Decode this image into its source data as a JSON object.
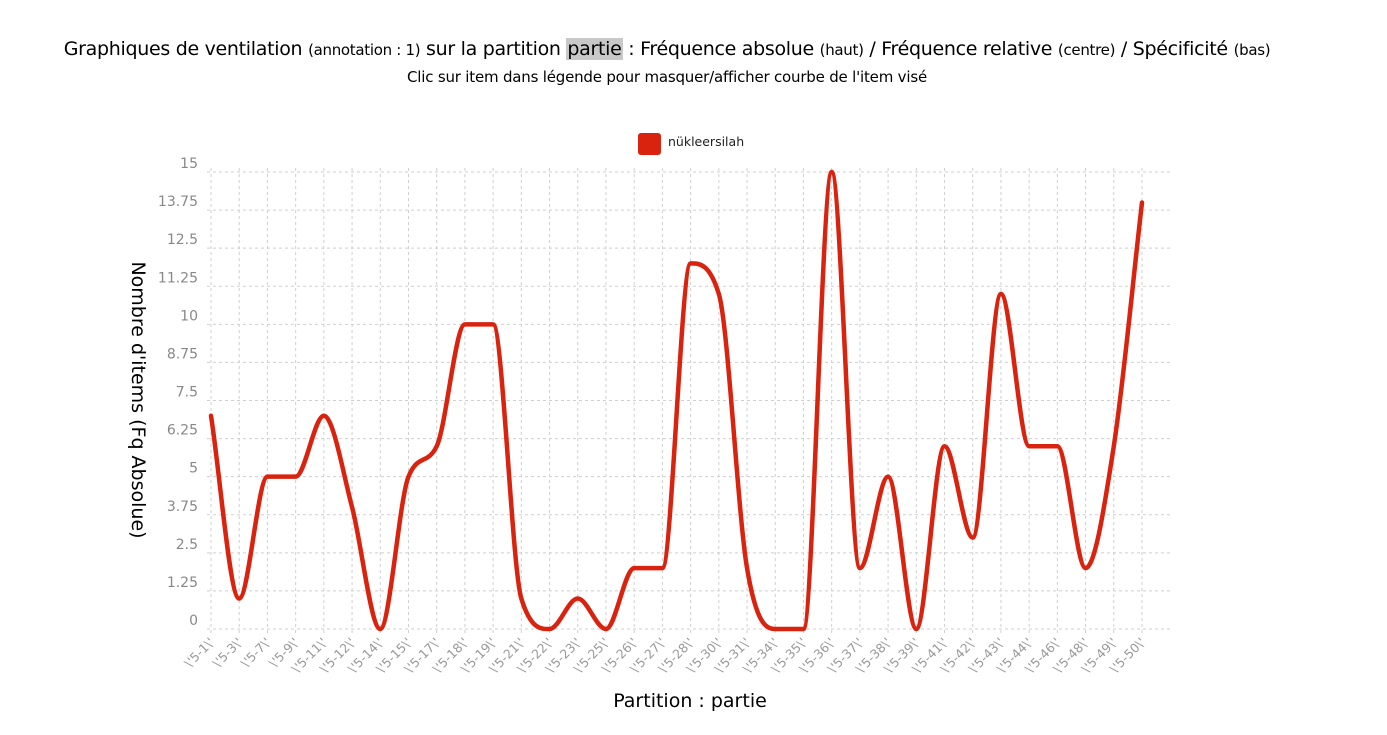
{
  "title": {
    "part1": "Graphiques de ventilation",
    "part2": "(annotation : 1)",
    "part3": "sur la partition",
    "part4": "partie",
    "part5": ": Fréquence absolue",
    "part6": "(haut)",
    "part7": "/ Fréquence relative",
    "part8": "(centre)",
    "part9": "/ Spécificité",
    "part10": "(bas)"
  },
  "subtitle": "Clic sur item dans légende pour masquer/afficher courbe de l'item visé",
  "chart_data": {
    "type": "line",
    "smooth": true,
    "grid": true,
    "legend_position": "top-center",
    "xlabel": "Partition : partie",
    "ylabel": "Nombre d'items (Fq Absolue)",
    "ylim": [
      0,
      15
    ],
    "yticks": [
      "0",
      "1.25",
      "2.5",
      "3.75",
      "5",
      "6.25",
      "7.5",
      "8.75",
      "10",
      "11.25",
      "12.5",
      "13.75",
      "15"
    ],
    "categories": [
      "\\'5-1\\'",
      "\\'5-3\\'",
      "\\'5-7\\'",
      "\\'5-9\\'",
      "\\'5-11\\'",
      "\\'5-12\\'",
      "\\'5-14\\'",
      "\\'5-15\\'",
      "\\'5-17\\'",
      "\\'5-18\\'",
      "\\'5-19\\'",
      "\\'5-21\\'",
      "\\'5-22\\'",
      "\\'5-23\\'",
      "\\'5-25\\'",
      "\\'5-26\\'",
      "\\'5-27\\'",
      "\\'5-28\\'",
      "\\'5-30\\'",
      "\\'5-31\\'",
      "\\'5-34\\'",
      "\\'5-35\\'",
      "\\'5-36\\'",
      "\\'5-37\\'",
      "\\'5-38\\'",
      "\\'5-39\\'",
      "\\'5-41\\'",
      "\\'5-42\\'",
      "\\'5-43\\'",
      "\\'5-44\\'",
      "\\'5-46\\'",
      "\\'5-48\\'",
      "\\'5-49\\'",
      "\\'5-50\\'"
    ],
    "series": [
      {
        "name": "nükleersilah",
        "color": "#d9230f",
        "values": [
          7,
          1,
          5,
          5,
          7,
          4,
          0,
          5,
          6,
          10,
          10,
          1,
          0,
          1,
          0,
          2,
          2,
          12,
          11,
          2,
          0,
          0,
          15,
          2,
          5,
          0,
          6,
          3,
          11,
          6,
          6,
          2,
          6,
          14
        ]
      }
    ]
  }
}
